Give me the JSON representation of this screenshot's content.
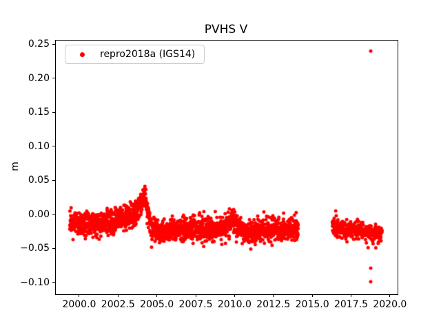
{
  "chart_data": {
    "type": "scatter",
    "title": "PVHS V",
    "xlabel": "",
    "ylabel": "m",
    "xlim": [
      1998.45,
      2020.45
    ],
    "ylim": [
      -0.1165,
      0.2565
    ],
    "xticks": [
      2000.0,
      2002.5,
      2005.0,
      2007.5,
      2010.0,
      2012.5,
      2015.0,
      2017.5,
      2020.0
    ],
    "yticks": [
      0.25,
      0.2,
      0.15,
      0.1,
      0.05,
      0.0,
      -0.05,
      -0.1
    ],
    "xtick_decimals": 1,
    "ytick_decimals": 2,
    "grid": false,
    "background_color": "#ffffff",
    "axes_color": "#000000",
    "legend": {
      "position": "upper left",
      "entries": [
        {
          "label": "repro2018a (IGS14)",
          "color": "#ff0000",
          "marker": "point"
        }
      ]
    },
    "series": [
      {
        "name": "repro2018a (IGS14)",
        "color": "#ff0000",
        "marker": "point",
        "marker_diameter_px": 5,
        "description": "Dense daily GPS vertical position solutions; band near -0.02 m, transient uplift peaking ~+0.048 m in early 2004, small bump in late 2009, data gap 2014-2016.3, sparse outliers in late 2018.",
        "segments": [
          {
            "x_start": 1999.35,
            "x_end": 2014.05,
            "points_per_year": 140,
            "noise_std": 0.0085,
            "mean_anchors": [
              [
                1999.35,
                -0.013
              ],
              [
                2000.5,
                -0.014
              ],
              [
                2001.5,
                -0.012
              ],
              [
                2002.3,
                -0.008
              ],
              [
                2003.0,
                -0.003
              ],
              [
                2003.6,
                0.004
              ],
              [
                2003.95,
                0.016
              ],
              [
                2004.15,
                0.031
              ],
              [
                2004.4,
                0.002
              ],
              [
                2004.6,
                -0.021
              ],
              [
                2005.5,
                -0.023
              ],
              [
                2006.5,
                -0.021
              ],
              [
                2007.5,
                -0.019
              ],
              [
                2008.5,
                -0.021
              ],
              [
                2009.35,
                -0.018
              ],
              [
                2009.7,
                -0.007
              ],
              [
                2010.1,
                -0.016
              ],
              [
                2010.6,
                -0.024
              ],
              [
                2011.5,
                -0.023
              ],
              [
                2012.5,
                -0.023
              ],
              [
                2013.3,
                -0.022
              ],
              [
                2014.05,
                -0.019
              ]
            ]
          },
          {
            "x_start": 2016.25,
            "x_end": 2019.45,
            "points_per_year": 120,
            "noise_std": 0.006,
            "mean_anchors": [
              [
                2016.25,
                -0.017
              ],
              [
                2017.0,
                -0.021
              ],
              [
                2017.6,
                -0.024
              ],
              [
                2018.2,
                -0.023
              ],
              [
                2018.8,
                -0.027
              ],
              [
                2019.45,
                -0.029
              ]
            ]
          }
        ],
        "outliers": [
          [
            2018.72,
            0.241
          ],
          [
            2016.5,
            -0.001
          ],
          [
            2018.55,
            -0.048
          ],
          [
            2018.72,
            -0.078
          ],
          [
            2018.72,
            -0.098
          ],
          [
            2010.45,
            -0.042
          ],
          [
            2011.0,
            -0.05
          ],
          [
            2009.9,
            0.008
          ]
        ]
      }
    ]
  }
}
